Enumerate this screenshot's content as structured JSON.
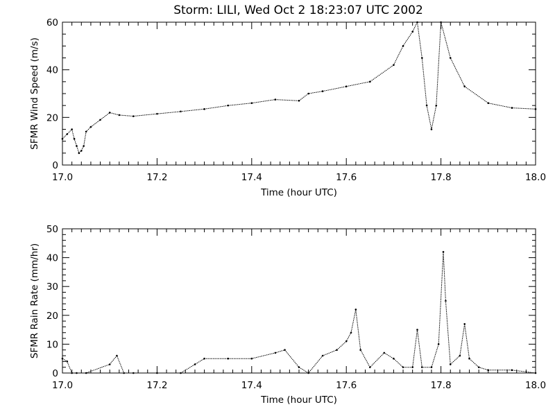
{
  "title": "Storm: LILI, Wed Oct  2 18:23:07 UTC 2002",
  "chart_data": [
    {
      "type": "scatter",
      "ylabel": "SFMR Wind Speed (m/s)",
      "xlabel": "Time (hour UTC)",
      "xlim": [
        17.0,
        18.0
      ],
      "ylim": [
        0,
        60
      ],
      "x_ticks": [
        "17.0",
        "17.2",
        "17.4",
        "17.6",
        "17.8",
        "18.0"
      ],
      "y_ticks": [
        "0",
        "20",
        "40",
        "60"
      ],
      "series": [
        {
          "x": [
            17.0,
            17.01,
            17.02,
            17.025,
            17.03,
            17.035,
            17.04,
            17.045,
            17.05,
            17.06,
            17.08,
            17.1,
            17.12,
            17.15,
            17.2,
            17.25,
            17.3,
            17.35,
            17.4,
            17.45,
            17.5,
            17.52,
            17.55,
            17.6,
            17.65,
            17.7,
            17.72,
            17.74,
            17.75,
            17.76,
            17.77,
            17.78,
            17.79,
            17.8,
            17.82,
            17.85,
            17.9,
            17.95,
            18.0
          ],
          "values": [
            11,
            13,
            15,
            11,
            8,
            5,
            6,
            8,
            14,
            16,
            19,
            22,
            21,
            20.5,
            21.5,
            22.5,
            23.5,
            25,
            26,
            27.5,
            27,
            30,
            31,
            33,
            35,
            42,
            50,
            56,
            60,
            45,
            25,
            15,
            25,
            60,
            45,
            33,
            26,
            24,
            23.5
          ]
        }
      ]
    },
    {
      "type": "scatter",
      "ylabel": "SFMR Rain Rate (mm/hr)",
      "xlabel": "Time (hour UTC)",
      "xlim": [
        17.0,
        18.0
      ],
      "ylim": [
        0,
        50
      ],
      "x_ticks": [
        "17.0",
        "17.2",
        "17.4",
        "17.6",
        "17.8",
        "18.0"
      ],
      "y_ticks": [
        "0",
        "10",
        "20",
        "30",
        "40",
        "50"
      ],
      "series": [
        {
          "x": [
            17.0,
            17.01,
            17.02,
            17.03,
            17.05,
            17.1,
            17.115,
            17.13,
            17.15,
            17.2,
            17.25,
            17.28,
            17.3,
            17.35,
            17.4,
            17.45,
            17.47,
            17.5,
            17.52,
            17.55,
            17.58,
            17.6,
            17.61,
            17.62,
            17.63,
            17.65,
            17.68,
            17.7,
            17.72,
            17.74,
            17.75,
            17.76,
            17.78,
            17.795,
            17.805,
            17.81,
            17.82,
            17.84,
            17.85,
            17.86,
            17.88,
            17.9,
            17.95,
            18.0
          ],
          "values": [
            5,
            4,
            0,
            0,
            0,
            3,
            6,
            0,
            0,
            0,
            0,
            3,
            5,
            5,
            5,
            7,
            8,
            2,
            0,
            6,
            8,
            11,
            14,
            22,
            8,
            2,
            7,
            5,
            2,
            2,
            15,
            2,
            2,
            10,
            42,
            25,
            3,
            6,
            17,
            5,
            2,
            1,
            1,
            0
          ]
        }
      ]
    }
  ]
}
